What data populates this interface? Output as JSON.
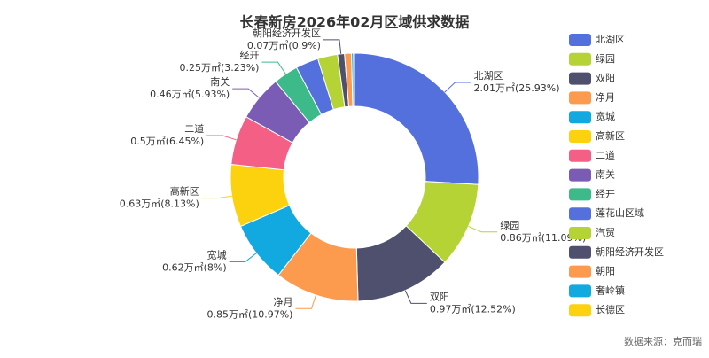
{
  "chart_data": {
    "type": "donut",
    "title": "长春新房2026年02月区域供求数据",
    "source": "数据来源：克而瑞",
    "categories": [
      "北湖区",
      "绿园",
      "双阳",
      "净月",
      "宽城",
      "高新区",
      "二道",
      "南关",
      "经开",
      "莲花山区域",
      "汽贸",
      "朝阳经济开发区",
      "朝阳",
      "奢岭镇",
      "长德区"
    ],
    "values": [
      2.01,
      0.86,
      0.97,
      0.85,
      0.62,
      0.63,
      0.5,
      0.46,
      0.25,
      0.23,
      0.2,
      0.07,
      0.07,
      0.02,
      0.01
    ],
    "value_labels": [
      "2.01万㎡(25.93%)",
      "0.86万㎡(11.09%)",
      "0.97万㎡(12.52%)",
      "0.85万㎡(10.97%)",
      "0.62万㎡(8%)",
      "0.63万㎡(8.13%)",
      "0.5万㎡(6.45%)",
      "0.46万㎡(5.93%)",
      "0.25万㎡(3.23%)",
      null,
      null,
      "0.07万㎡(0.9%)",
      null,
      null,
      null
    ],
    "colors": [
      "#5470dc",
      "#b5d334",
      "#4e506e",
      "#fc9a4d",
      "#12a8e0",
      "#fcd10e",
      "#f45f85",
      "#7b5cb5",
      "#3dba8a",
      "#5470dc",
      "#b5d334",
      "#4e506e",
      "#fc9a4d",
      "#12a8e0",
      "#fcd10e"
    ],
    "legend": "right"
  }
}
